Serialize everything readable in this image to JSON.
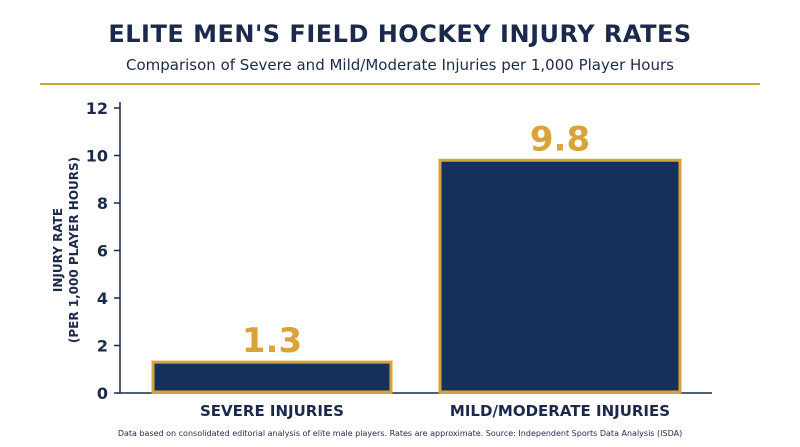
{
  "title": "ELITE MEN'S FIELD HOCKEY INJURY RATES",
  "subtitle": "Comparison of Severe and Mild/Moderate Injuries per 1,000 Player Hours",
  "footnote": "Data based on consolidated editorial analysis of elite male players. Rates are approximate. Source: Independent Sports Data Analysis (ISDA)",
  "colors": {
    "navy": "#1b2a4a",
    "bar": "#15305a",
    "gold": "#d9a33a",
    "text": "#1b2a4a"
  },
  "chart_data": {
    "type": "bar",
    "categories": [
      "SEVERE INJURIES",
      "MILD/MODERATE INJURIES"
    ],
    "values": [
      1.3,
      9.8
    ],
    "value_labels": [
      "1.3",
      "9.8"
    ],
    "ylabel_line1": "INJURY RATE",
    "ylabel_line2": "(PER 1,000 PLAYER HOURS)",
    "ylim": [
      0,
      12
    ],
    "yticks": [
      0,
      2,
      4,
      6,
      8,
      10,
      12
    ],
    "grid": false
  }
}
